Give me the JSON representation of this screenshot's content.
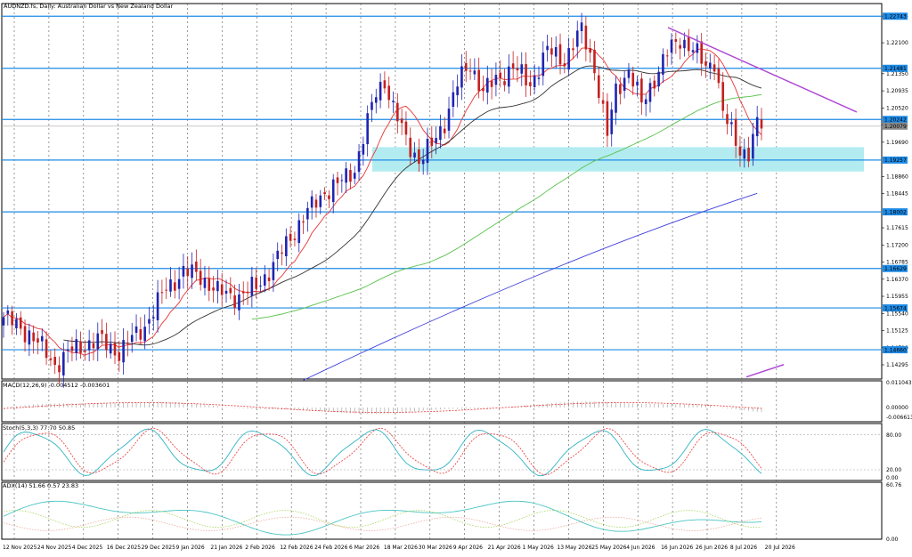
{
  "header": {
    "title": "AUDNZD.fs, Daily: Australian Dollar vs New Zealand Dollar"
  },
  "chart_data": {
    "type": "candlestick",
    "symbol": "AUDNZD.fs",
    "timeframe": "Daily",
    "ylim": [
      1.1395,
      1.2305
    ],
    "price_ticks": [
      "1.22745",
      "1.22100",
      "1.21350",
      "1.20935",
      "1.20520",
      "1.20105",
      "1.19690",
      "1.18860",
      "1.18445",
      "1.17615",
      "1.17200",
      "1.16785",
      "1.16370",
      "1.15955",
      "1.15540",
      "1.15125",
      "1.14710",
      "1.14295"
    ],
    "level_labels": [
      "1.22743",
      "1.21481",
      "1.20242",
      "1.20079",
      "1.19257",
      "1.18002",
      "1.16629",
      "1.15674",
      "1.14660"
    ],
    "levels": [
      1.22743,
      1.21481,
      1.20242,
      1.19257,
      1.18002,
      1.16629,
      1.15674,
      1.1466
    ],
    "current_price": 1.20079,
    "x_labels": [
      "12 Nov 2025",
      "24 Nov 2025",
      "4 Dec 2025",
      "16 Dec 2025",
      "29 Dec 2025",
      "9 Jan 2026",
      "21 Jan 2026",
      "2 Feb 2026",
      "12 Feb 2026",
      "24 Feb 2026",
      "6 Mar 2026",
      "18 Mar 2026",
      "30 Mar 2026",
      "9 Apr 2026",
      "21 Apr 2026",
      "1 May 2026",
      "13 May 2026",
      "25 May 2026",
      "4 Jun 2026",
      "16 Jun 2026",
      "26 Jun 2026",
      "8 Jul 2026",
      "20 Jul 2026"
    ],
    "support_zone": [
      1.1898,
      1.1957
    ],
    "close_path": [
      [
        0,
        1.1545
      ],
      [
        6,
        1.1505
      ],
      [
        9,
        1.147
      ],
      [
        12,
        1.143
      ],
      [
        16,
        1.1465
      ],
      [
        22,
        1.149
      ],
      [
        27,
        1.146
      ],
      [
        33,
        1.1525
      ],
      [
        38,
        1.1615
      ],
      [
        42,
        1.1655
      ],
      [
        46,
        1.1645
      ],
      [
        50,
        1.1605
      ],
      [
        55,
        1.1595
      ],
      [
        59,
        1.162
      ],
      [
        63,
        1.167
      ],
      [
        67,
        1.174
      ],
      [
        71,
        1.18
      ],
      [
        75,
        1.185
      ],
      [
        78,
        1.1865
      ],
      [
        82,
        1.1905
      ],
      [
        84,
        1.198
      ],
      [
        87,
        1.209
      ],
      [
        89,
        1.212
      ],
      [
        91,
        1.205
      ],
      [
        94,
        1.1975
      ],
      [
        97,
        1.1925
      ],
      [
        100,
        1.196
      ],
      [
        103,
        1.202
      ],
      [
        106,
        1.211
      ],
      [
        109,
        1.216
      ],
      [
        112,
        1.209
      ],
      [
        115,
        1.212
      ],
      [
        119,
        1.215
      ],
      [
        123,
        1.211
      ],
      [
        127,
        1.219
      ],
      [
        131,
        1.217
      ],
      [
        135,
        1.224
      ],
      [
        138,
        1.215
      ],
      [
        141,
        1.1985
      ],
      [
        143,
        1.2095
      ],
      [
        146,
        1.2145
      ],
      [
        149,
        1.206
      ],
      [
        152,
        1.2125
      ],
      [
        155,
        1.2185
      ],
      [
        158,
        1.222
      ],
      [
        161,
        1.2195
      ],
      [
        164,
        1.215
      ],
      [
        166,
        1.217
      ],
      [
        168,
        1.204
      ],
      [
        170,
        1.199
      ],
      [
        172,
        1.195
      ],
      [
        174,
        1.1945
      ],
      [
        176,
        1.201
      ]
    ],
    "indicators": {
      "macd": {
        "label": "MACD(12,26,9) -0.004512 -0.003601",
        "ticks": [
          "0.011043",
          "0.00000",
          "-0.006613"
        ]
      },
      "stoch": {
        "label": "Stoch(5,3,3) 77.70 50.85",
        "ticks": [
          "80.00",
          "20.00",
          "0.00"
        ]
      },
      "adx": {
        "label": "ADX(14) 51.66 0.57 23.83",
        "ticks": [
          "60.76",
          "0.00"
        ]
      }
    }
  },
  "colors": {
    "bull": "#1f24b0",
    "bear": "#c42020",
    "level": "#1e8be6",
    "zone": "#b3ecf0",
    "trend": "#b04cd6",
    "ma_fast": "#e83535",
    "ma_mid": "#333333",
    "ma_slow": "#58c24a",
    "ma_long": "#3d3ddb",
    "macd_signal": "#e83535",
    "stoch_main": "#2fb3c4",
    "stoch_signal": "#e83535",
    "adx_main": "#4cc4c4",
    "adx_plus": "#9bd24a",
    "adx_minus": "#e8a090"
  }
}
